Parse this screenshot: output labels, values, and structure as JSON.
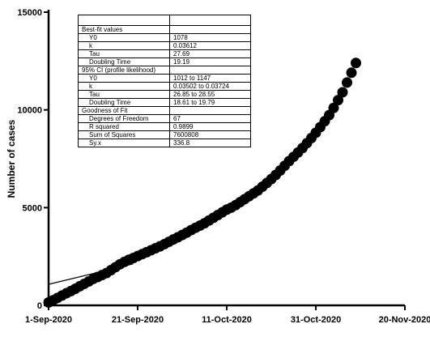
{
  "chart_data": {
    "type": "scatter",
    "title": "",
    "xlabel": "",
    "ylabel": "Number of cases",
    "x_tick_labels": [
      "1-Sep-2020",
      "21-Sep-2020",
      "11-Oct-2020",
      "31-Oct-2020",
      "20-Nov-2020"
    ],
    "x_ticks": [
      "2020-09-01",
      "2020-09-21",
      "2020-10-11",
      "2020-10-31",
      "2020-11-20"
    ],
    "xlim": [
      "2020-09-01",
      "2020-11-20"
    ],
    "y_tick_labels": [
      "0",
      "5000",
      "10000",
      "15000"
    ],
    "y_ticks": [
      0,
      5000,
      10000,
      15000
    ],
    "ylim": [
      0,
      15000
    ],
    "grid": false,
    "colors": {
      "points": "#000000",
      "fit_line": "#000000"
    },
    "points": {
      "x": [
        "2020-09-01",
        "2020-09-02",
        "2020-09-03",
        "2020-09-04",
        "2020-09-05",
        "2020-09-06",
        "2020-09-07",
        "2020-09-08",
        "2020-09-09",
        "2020-09-10",
        "2020-09-11",
        "2020-09-12",
        "2020-09-13",
        "2020-09-14",
        "2020-09-15",
        "2020-09-16",
        "2020-09-17",
        "2020-09-18",
        "2020-09-19",
        "2020-09-20",
        "2020-09-21",
        "2020-09-22",
        "2020-09-23",
        "2020-09-24",
        "2020-09-25",
        "2020-09-26",
        "2020-09-27",
        "2020-09-28",
        "2020-09-29",
        "2020-09-30",
        "2020-10-01",
        "2020-10-02",
        "2020-10-03",
        "2020-10-04",
        "2020-10-05",
        "2020-10-06",
        "2020-10-07",
        "2020-10-08",
        "2020-10-09",
        "2020-10-10",
        "2020-10-11",
        "2020-10-12",
        "2020-10-13",
        "2020-10-14",
        "2020-10-15",
        "2020-10-16",
        "2020-10-17",
        "2020-10-18",
        "2020-10-19",
        "2020-10-20",
        "2020-10-21",
        "2020-10-22",
        "2020-10-23",
        "2020-10-24",
        "2020-10-25",
        "2020-10-26",
        "2020-10-27",
        "2020-10-28",
        "2020-10-29",
        "2020-10-30",
        "2020-10-31",
        "2020-11-01",
        "2020-11-02",
        "2020-11-03",
        "2020-11-04",
        "2020-11-05",
        "2020-11-06",
        "2020-11-07",
        "2020-11-08",
        "2020-11-09"
      ],
      "y": [
        150,
        260,
        380,
        500,
        620,
        730,
        850,
        980,
        1100,
        1220,
        1350,
        1450,
        1550,
        1650,
        1800,
        1950,
        2100,
        2220,
        2330,
        2420,
        2520,
        2620,
        2720,
        2820,
        2920,
        3020,
        3130,
        3250,
        3370,
        3480,
        3600,
        3720,
        3850,
        3970,
        4080,
        4200,
        4340,
        4480,
        4620,
        4760,
        4900,
        5000,
        5130,
        5280,
        5430,
        5580,
        5730,
        5880,
        6070,
        6260,
        6460,
        6670,
        6900,
        7140,
        7380,
        7600,
        7820,
        8050,
        8300,
        8560,
        8830,
        9120,
        9420,
        9730,
        10100,
        10500,
        10900,
        11400,
        11900,
        12400
      ]
    },
    "fit_line": {
      "x": [
        "2020-09-01",
        "2020-09-20"
      ],
      "y": [
        1078,
        2120
      ]
    }
  },
  "fit_table": {
    "header": [
      "",
      ""
    ],
    "rows": [
      {
        "label": "Best-fit values",
        "value": "",
        "indent": false
      },
      {
        "label": "Y0",
        "value": "1078",
        "indent": true
      },
      {
        "label": "k",
        "value": "0.03612",
        "indent": true
      },
      {
        "label": "Tau",
        "value": "27.69",
        "indent": true
      },
      {
        "label": "Doubling Time",
        "value": "19.19",
        "indent": true
      },
      {
        "label": "95% CI (profile likelihood)",
        "value": "",
        "indent": false
      },
      {
        "label": "Y0",
        "value": "1012 to 1147",
        "indent": true
      },
      {
        "label": "k",
        "value": "0.03502 to 0.03724",
        "indent": true
      },
      {
        "label": "Tau",
        "value": "26.85 to 28.55",
        "indent": true
      },
      {
        "label": "Doubling Time",
        "value": "18.61 to 19.79",
        "indent": true
      },
      {
        "label": "Goodness of Fit",
        "value": "",
        "indent": false
      },
      {
        "label": "Degrees of Freedom",
        "value": "67",
        "indent": true
      },
      {
        "label": "R squared",
        "value": "0.9899",
        "indent": true
      },
      {
        "label": "Sum of Squares",
        "value": "7600808",
        "indent": true
      },
      {
        "label": "Sy.x",
        "value": "336.8",
        "indent": true
      }
    ]
  }
}
